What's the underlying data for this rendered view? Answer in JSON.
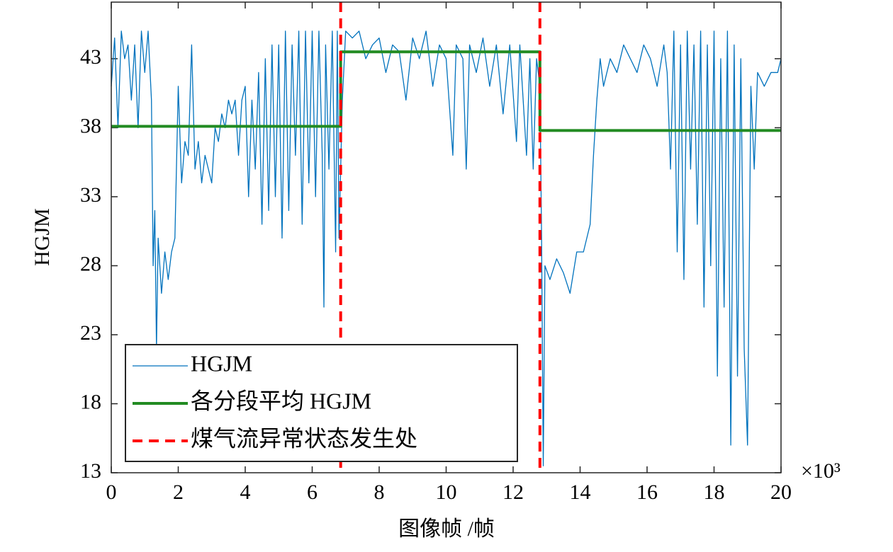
{
  "chart_data": {
    "type": "line",
    "xlabel": "图像帧 /帧",
    "ylabel": "HGJM",
    "x_multiplier": "×10³",
    "xlim": [
      0,
      20
    ],
    "xticks": [
      0,
      2,
      4,
      6,
      8,
      10,
      12,
      14,
      16,
      18,
      20
    ],
    "ylim": [
      13,
      47.1
    ],
    "yticks": [
      13,
      18,
      23,
      28,
      33,
      38,
      43
    ],
    "legend": "lower left",
    "series": [
      {
        "name": "HGJM",
        "color": "#0072bd",
        "x": [
          0,
          0.1,
          0.2,
          0.3,
          0.4,
          0.5,
          0.6,
          0.7,
          0.8,
          0.9,
          1.0,
          1.1,
          1.2,
          1.25,
          1.3,
          1.35,
          1.4,
          1.5,
          1.6,
          1.7,
          1.8,
          1.9,
          2.0,
          2.1,
          2.2,
          2.3,
          2.4,
          2.5,
          2.6,
          2.7,
          2.8,
          2.9,
          3.0,
          3.1,
          3.2,
          3.3,
          3.4,
          3.5,
          3.6,
          3.7,
          3.8,
          3.9,
          4.0,
          4.1,
          4.2,
          4.3,
          4.4,
          4.5,
          4.6,
          4.7,
          4.8,
          4.9,
          5.0,
          5.1,
          5.2,
          5.3,
          5.4,
          5.5,
          5.6,
          5.7,
          5.8,
          5.9,
          6.0,
          6.1,
          6.2,
          6.3,
          6.35,
          6.4,
          6.5,
          6.6,
          6.7,
          6.75,
          6.8,
          6.9,
          7.0,
          7.2,
          7.4,
          7.6,
          7.8,
          8.0,
          8.2,
          8.4,
          8.6,
          8.8,
          9.0,
          9.2,
          9.4,
          9.6,
          9.8,
          10.0,
          10.2,
          10.3,
          10.5,
          10.6,
          10.7,
          10.9,
          11.1,
          11.3,
          11.5,
          11.7,
          11.9,
          12.1,
          12.2,
          12.4,
          12.5,
          12.6,
          12.7,
          12.8,
          12.85,
          12.9,
          12.95,
          13.1,
          13.3,
          13.5,
          13.7,
          13.9,
          14.1,
          14.3,
          14.4,
          14.5,
          14.6,
          14.7,
          14.9,
          15.1,
          15.3,
          15.5,
          15.7,
          15.9,
          16.1,
          16.3,
          16.5,
          16.6,
          16.7,
          16.8,
          16.9,
          17.0,
          17.1,
          17.2,
          17.3,
          17.4,
          17.5,
          17.6,
          17.7,
          17.8,
          17.9,
          18.0,
          18.1,
          18.2,
          18.3,
          18.4,
          18.5,
          18.6,
          18.7,
          18.8,
          18.9,
          19.0,
          19.1,
          19.2,
          19.3,
          19.5,
          19.7,
          19.9,
          20.0
        ],
        "values": [
          41,
          44.5,
          38,
          45,
          43,
          44,
          40,
          44,
          38,
          45,
          42,
          45,
          40,
          28,
          32,
          22,
          30,
          26,
          29,
          27,
          29,
          30,
          41,
          34,
          37,
          36,
          44,
          35,
          37,
          34,
          36,
          35,
          34,
          38,
          37,
          39,
          38,
          40,
          39,
          40,
          36,
          40,
          41,
          33,
          40,
          35,
          42,
          31,
          43,
          32,
          44,
          33,
          44,
          30,
          45,
          32,
          44,
          36,
          45,
          31,
          45,
          34,
          45,
          33,
          45,
          36,
          25,
          44,
          35,
          45,
          29,
          45,
          30,
          40,
          45,
          44.5,
          45,
          43,
          44,
          44.5,
          42,
          44,
          43.5,
          40,
          44.5,
          43,
          45,
          41,
          44,
          43,
          36,
          44,
          43,
          35,
          44,
          42,
          44.5,
          41,
          44,
          39,
          44,
          37,
          44,
          36,
          43,
          35,
          43,
          41,
          30,
          13.5,
          28,
          27,
          28.5,
          27.5,
          26,
          29,
          29,
          31,
          36,
          40,
          43,
          41,
          43,
          42,
          44,
          43,
          42,
          44,
          43,
          41,
          44,
          42,
          35,
          45,
          29,
          44,
          27,
          45,
          35,
          44,
          31,
          45,
          25,
          44,
          28,
          45,
          20,
          43,
          25,
          45,
          15,
          44,
          20,
          43,
          22,
          15,
          41,
          35,
          42,
          41,
          42,
          42,
          43
        ]
      },
      {
        "name": "各分段平均 HGJM",
        "color": "#228b22",
        "x": [
          0,
          6.85,
          6.85,
          12.8,
          12.8,
          20
        ],
        "values": [
          38.1,
          38.1,
          43.5,
          43.5,
          37.8,
          37.8
        ]
      }
    ],
    "vlines": {
      "name": "煤气流异常状态发生处",
      "color": "#ff0000",
      "x": [
        6.85,
        12.8
      ]
    }
  }
}
